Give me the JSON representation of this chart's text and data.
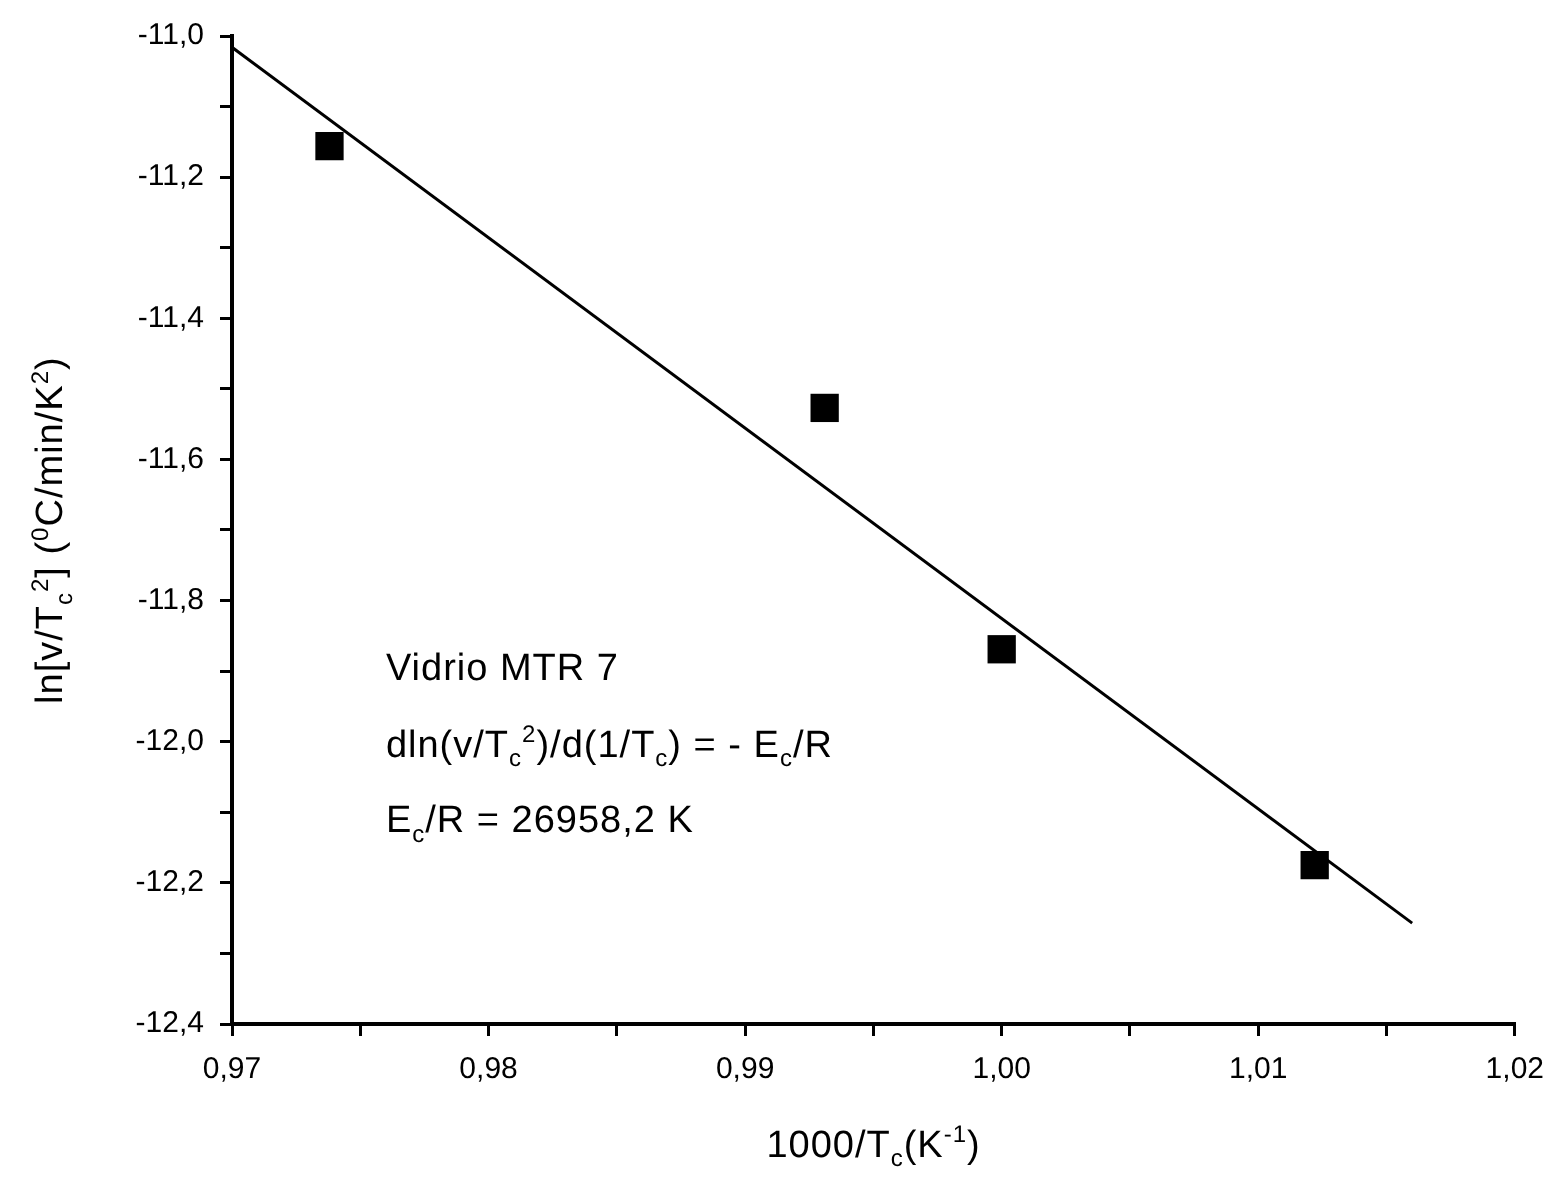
{
  "chart_data": {
    "type": "scatter",
    "xlabel": "1000/T$_{c}$(K$^{-1}$)",
    "ylabel": "ln[v/T$_{c}$$^{2}$] ($^{0}$C/min/K$^{2}$)",
    "xlim": [
      0.97,
      1.02
    ],
    "xticks": [
      {
        "value": 0.97,
        "label": "0,97"
      },
      {
        "value": 0.975,
        "label": null
      },
      {
        "value": 0.98,
        "label": "0,98"
      },
      {
        "value": 0.985,
        "label": null
      },
      {
        "value": 0.99,
        "label": "0,99"
      },
      {
        "value": 0.995,
        "label": null
      },
      {
        "value": 1.0,
        "label": "1,00"
      },
      {
        "value": 1.005,
        "label": null
      },
      {
        "value": 1.01,
        "label": "1,01"
      },
      {
        "value": 1.015,
        "label": null
      },
      {
        "value": 1.02,
        "label": "1,02"
      }
    ],
    "ylim": [
      -12.4,
      -11.0
    ],
    "yticks": [
      {
        "value": -12.4,
        "label": "-12,4"
      },
      {
        "value": -12.3,
        "label": null
      },
      {
        "value": -12.2,
        "label": "-12,2"
      },
      {
        "value": -12.1,
        "label": null
      },
      {
        "value": -12.0,
        "label": "-12,0"
      },
      {
        "value": -11.9,
        "label": null
      },
      {
        "value": -11.8,
        "label": "-11,8"
      },
      {
        "value": -11.7,
        "label": null
      },
      {
        "value": -11.6,
        "label": "-11,6"
      },
      {
        "value": -11.5,
        "label": null
      },
      {
        "value": -11.4,
        "label": "-11,4"
      },
      {
        "value": -11.3,
        "label": null
      },
      {
        "value": -11.2,
        "label": "-11,2"
      },
      {
        "value": -11.1,
        "label": null
      },
      {
        "value": -11.0,
        "label": "-11,0"
      }
    ],
    "grid": false,
    "legend": false,
    "marker": "square",
    "series": [
      {
        "color": "#000000",
        "x": [
          0.9738,
          0.9931,
          1.0,
          1.0122
        ],
        "values": [
          -11.156,
          -11.527,
          -11.869,
          -12.175
        ]
      },
      {
        "type": "line",
        "color": "#000000",
        "marker": "none",
        "x": [
          0.97,
          1.016
        ],
        "values": [
          -11.016,
          -12.257
        ]
      }
    ],
    "annotations": [
      "Vidrio MTR 7",
      "dln(v/T$_{c}$$^{2}$)/d(1/T$_{c}$) = - E$_{c}$/R",
      "E$_{c}$/R = 26958,2 K"
    ]
  }
}
